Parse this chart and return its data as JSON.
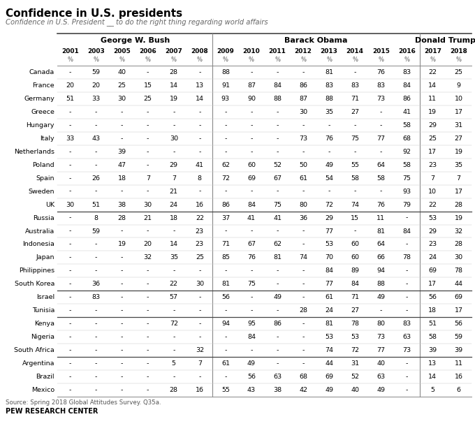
{
  "title": "Confidence in U.S. presidents",
  "subtitle": "Confidence in U.S. President __ to do the right thing regarding world affairs",
  "source": "Source: Spring 2018 Global Attitudes Survey. Q35a.",
  "footer": "PEW RESEARCH CENTER",
  "years": [
    "2001",
    "2003",
    "2005",
    "2006",
    "2007",
    "2008",
    "2009",
    "2010",
    "2011",
    "2012",
    "2013",
    "2014",
    "2015",
    "2016",
    "2017",
    "2018"
  ],
  "countries": [
    "Canada",
    "France",
    "Germany",
    "Greece",
    "Hungary",
    "Italy",
    "Netherlands",
    "Poland",
    "Spain",
    "Sweden",
    "UK",
    "Russia",
    "Australia",
    "Indonesia",
    "Japan",
    "Philippines",
    "South Korea",
    "Israel",
    "Tunisia",
    "Kenya",
    "Nigeria",
    "South Africa",
    "Argentina",
    "Brazil",
    "Mexico"
  ],
  "data": {
    "Canada": [
      "-",
      "59",
      "40",
      "-",
      "28",
      "-",
      "88",
      "-",
      "-",
      "-",
      "81",
      "-",
      "76",
      "83",
      "22",
      "25"
    ],
    "France": [
      "20",
      "20",
      "25",
      "15",
      "14",
      "13",
      "91",
      "87",
      "84",
      "86",
      "83",
      "83",
      "83",
      "84",
      "14",
      "9"
    ],
    "Germany": [
      "51",
      "33",
      "30",
      "25",
      "19",
      "14",
      "93",
      "90",
      "88",
      "87",
      "88",
      "71",
      "73",
      "86",
      "11",
      "10"
    ],
    "Greece": [
      "-",
      "-",
      "-",
      "-",
      "-",
      "-",
      "-",
      "-",
      "-",
      "30",
      "35",
      "27",
      "-",
      "41",
      "19",
      "17"
    ],
    "Hungary": [
      "-",
      "-",
      "-",
      "-",
      "-",
      "-",
      "-",
      "-",
      "-",
      "-",
      "-",
      "-",
      "-",
      "58",
      "29",
      "31"
    ],
    "Italy": [
      "33",
      "43",
      "-",
      "-",
      "30",
      "-",
      "-",
      "-",
      "-",
      "73",
      "76",
      "75",
      "77",
      "68",
      "25",
      "27"
    ],
    "Netherlands": [
      "-",
      "-",
      "39",
      "-",
      "-",
      "-",
      "-",
      "-",
      "-",
      "-",
      "-",
      "-",
      "-",
      "92",
      "17",
      "19"
    ],
    "Poland": [
      "-",
      "-",
      "47",
      "-",
      "29",
      "41",
      "62",
      "60",
      "52",
      "50",
      "49",
      "55",
      "64",
      "58",
      "23",
      "35"
    ],
    "Spain": [
      "-",
      "26",
      "18",
      "7",
      "7",
      "8",
      "72",
      "69",
      "67",
      "61",
      "54",
      "58",
      "58",
      "75",
      "7",
      "7"
    ],
    "Sweden": [
      "-",
      "-",
      "-",
      "-",
      "21",
      "-",
      "-",
      "-",
      "-",
      "-",
      "-",
      "-",
      "-",
      "93",
      "10",
      "17"
    ],
    "UK": [
      "30",
      "51",
      "38",
      "30",
      "24",
      "16",
      "86",
      "84",
      "75",
      "80",
      "72",
      "74",
      "76",
      "79",
      "22",
      "28"
    ],
    "Russia": [
      "-",
      "8",
      "28",
      "21",
      "18",
      "22",
      "37",
      "41",
      "41",
      "36",
      "29",
      "15",
      "11",
      "-",
      "53",
      "19"
    ],
    "Australia": [
      "-",
      "59",
      "-",
      "-",
      "-",
      "23",
      "-",
      "-",
      "-",
      "-",
      "77",
      "-",
      "81",
      "84",
      "29",
      "32"
    ],
    "Indonesia": [
      "-",
      "-",
      "19",
      "20",
      "14",
      "23",
      "71",
      "67",
      "62",
      "-",
      "53",
      "60",
      "64",
      "-",
      "23",
      "28"
    ],
    "Japan": [
      "-",
      "-",
      "-",
      "32",
      "35",
      "25",
      "85",
      "76",
      "81",
      "74",
      "70",
      "60",
      "66",
      "78",
      "24",
      "30"
    ],
    "Philippines": [
      "-",
      "-",
      "-",
      "-",
      "-",
      "-",
      "-",
      "-",
      "-",
      "-",
      "84",
      "89",
      "94",
      "-",
      "69",
      "78"
    ],
    "South Korea": [
      "-",
      "36",
      "-",
      "-",
      "22",
      "30",
      "81",
      "75",
      "-",
      "-",
      "77",
      "84",
      "88",
      "-",
      "17",
      "44"
    ],
    "Israel": [
      "-",
      "83",
      "-",
      "-",
      "57",
      "-",
      "56",
      "-",
      "49",
      "-",
      "61",
      "71",
      "49",
      "-",
      "56",
      "69"
    ],
    "Tunisia": [
      "-",
      "-",
      "-",
      "-",
      "-",
      "-",
      "-",
      "-",
      "-",
      "28",
      "24",
      "27",
      "-",
      "-",
      "18",
      "17"
    ],
    "Kenya": [
      "-",
      "-",
      "-",
      "-",
      "72",
      "-",
      "94",
      "95",
      "86",
      "-",
      "81",
      "78",
      "80",
      "83",
      "51",
      "56"
    ],
    "Nigeria": [
      "-",
      "-",
      "-",
      "-",
      "-",
      "-",
      "-",
      "84",
      "-",
      "-",
      "53",
      "53",
      "73",
      "63",
      "58",
      "59"
    ],
    "South Africa": [
      "-",
      "-",
      "-",
      "-",
      "-",
      "32",
      "-",
      "-",
      "-",
      "-",
      "74",
      "72",
      "77",
      "73",
      "39",
      "39"
    ],
    "Argentina": [
      "-",
      "-",
      "-",
      "-",
      "5",
      "7",
      "61",
      "49",
      "-",
      "-",
      "44",
      "31",
      "40",
      "-",
      "13",
      "11"
    ],
    "Brazil": [
      "-",
      "-",
      "-",
      "-",
      "-",
      "-",
      "-",
      "56",
      "63",
      "68",
      "69",
      "52",
      "63",
      "-",
      "14",
      "16"
    ],
    "Mexico": [
      "-",
      "-",
      "-",
      "-",
      "28",
      "16",
      "55",
      "43",
      "38",
      "42",
      "49",
      "40",
      "49",
      "-",
      "5",
      "6"
    ]
  },
  "group_dividers": [
    11,
    17,
    19,
    22
  ],
  "background_color": "#ffffff"
}
